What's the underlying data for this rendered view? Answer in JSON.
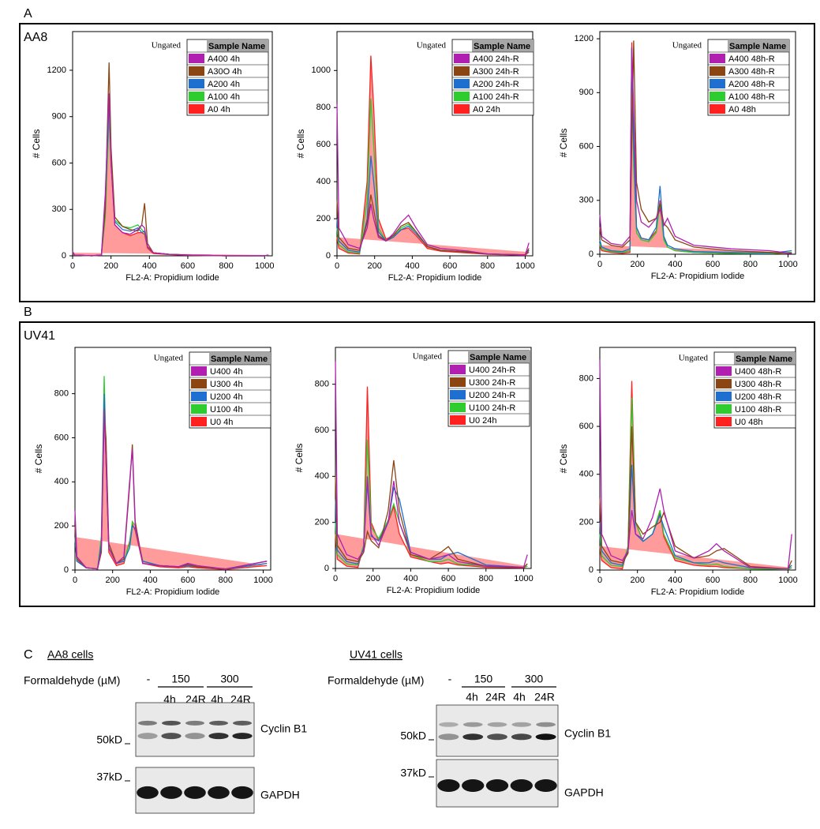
{
  "figure": {
    "panel_labels": [
      "A",
      "B",
      "C"
    ],
    "panel_titles": [
      "AA8",
      "UV41"
    ],
    "blots": [
      {
        "title": "AA8 cells",
        "treatment_label": "Formaldehyde (µM)",
        "control": "-",
        "doses": [
          "150",
          "300"
        ],
        "times": [
          "4h",
          "24R",
          "4h",
          "24R"
        ],
        "markers": [
          "50kD",
          "37kD"
        ],
        "proteins": [
          "Cyclin B1",
          "GAPDH"
        ]
      },
      {
        "title": "UV41 cells",
        "treatment_label": "Formaldehyde (µM)",
        "control": "-",
        "doses": [
          "150",
          "300"
        ],
        "times": [
          "4h",
          "24R",
          "4h",
          "24R"
        ],
        "markers": [
          "50kD",
          "37kD"
        ],
        "proteins": [
          "Cyclin B1",
          "GAPDH"
        ]
      }
    ]
  },
  "chart_data": [
    {
      "type": "line",
      "title": "Ungated",
      "legend_title": "Sample Name",
      "xlabel": "FL2-A: Propidium Iodide",
      "ylabel": "# Cells",
      "x": [
        0,
        10,
        100,
        150,
        170,
        190,
        200,
        220,
        260,
        300,
        340,
        360,
        375,
        390,
        420,
        500,
        600,
        800,
        1000,
        1020
      ],
      "series": [
        {
          "name": "A400 4h",
          "color": "#b01fb0",
          "values": [
            30,
            5,
            0,
            5,
            400,
            1050,
            600,
            200,
            150,
            140,
            170,
            200,
            180,
            60,
            20,
            10,
            5,
            0,
            0,
            5
          ]
        },
        {
          "name": "A30O 4h",
          "color": "#8b4513",
          "values": [
            20,
            5,
            0,
            5,
            300,
            1250,
            700,
            250,
            190,
            170,
            160,
            200,
            340,
            80,
            20,
            10,
            5,
            0,
            0,
            5
          ]
        },
        {
          "name": "A200 4h",
          "color": "#1e6fd0",
          "values": [
            20,
            5,
            0,
            5,
            350,
            1000,
            650,
            220,
            170,
            160,
            180,
            150,
            160,
            60,
            20,
            10,
            5,
            0,
            0,
            5
          ]
        },
        {
          "name": "A100 4h",
          "color": "#2ecc2e",
          "values": [
            20,
            5,
            0,
            5,
            250,
            900,
            600,
            230,
            190,
            180,
            200,
            170,
            150,
            60,
            20,
            10,
            5,
            0,
            0,
            5
          ]
        },
        {
          "name": "A0 4h",
          "color": "#ff2020",
          "values": [
            20,
            5,
            0,
            5,
            300,
            950,
            600,
            200,
            150,
            130,
            150,
            150,
            140,
            50,
            15,
            8,
            3,
            0,
            0,
            5
          ]
        }
      ],
      "xlim": [
        0,
        1040
      ],
      "ylim": [
        0,
        1450
      ],
      "xticks": [
        0,
        200,
        400,
        600,
        800,
        1000
      ],
      "yticks": [
        0,
        300,
        600,
        900,
        1200
      ]
    },
    {
      "type": "line",
      "title": "Ungated",
      "legend_title": "Sample Name",
      "xlabel": "FL2-A: Propidium Iodide",
      "ylabel": "# Cells",
      "x": [
        0,
        10,
        60,
        120,
        160,
        180,
        195,
        220,
        260,
        300,
        340,
        380,
        420,
        480,
        550,
        700,
        800,
        1000,
        1020
      ],
      "series": [
        {
          "name": "A400 24h-R",
          "color": "#b01fb0",
          "values": [
            820,
            150,
            60,
            40,
            150,
            280,
            200,
            100,
            80,
            120,
            180,
            220,
            150,
            60,
            40,
            25,
            10,
            5,
            70
          ]
        },
        {
          "name": "A300 24h-R",
          "color": "#8b4513",
          "values": [
            300,
            100,
            40,
            30,
            180,
            330,
            250,
            110,
            80,
            110,
            160,
            180,
            130,
            50,
            30,
            20,
            10,
            5,
            40
          ]
        },
        {
          "name": "A200 24h-R",
          "color": "#1e6fd0",
          "values": [
            200,
            80,
            30,
            20,
            200,
            540,
            400,
            130,
            80,
            100,
            140,
            160,
            120,
            50,
            30,
            20,
            10,
            5,
            30
          ]
        },
        {
          "name": "A100 24h-R",
          "color": "#2ecc2e",
          "values": [
            150,
            60,
            20,
            15,
            300,
            850,
            600,
            150,
            80,
            100,
            150,
            170,
            130,
            50,
            30,
            20,
            10,
            5,
            30
          ]
        },
        {
          "name": "A0 24h",
          "color": "#ff2020",
          "values": [
            100,
            40,
            15,
            10,
            400,
            1080,
            800,
            200,
            90,
            110,
            140,
            150,
            110,
            40,
            25,
            15,
            8,
            3,
            20
          ]
        }
      ],
      "xlim": [
        0,
        1040
      ],
      "ylim": [
        0,
        1210
      ],
      "xticks": [
        0,
        200,
        400,
        600,
        800,
        1000
      ],
      "yticks": [
        0,
        200,
        400,
        600,
        800,
        1000
      ]
    },
    {
      "type": "line",
      "title": "Ungated",
      "legend_title": "Sample Name",
      "xlabel": "FL2-A: Propidium Iodide",
      "ylabel": "# Cells",
      "x": [
        0,
        10,
        60,
        120,
        160,
        170,
        180,
        195,
        220,
        260,
        300,
        320,
        340,
        360,
        400,
        500,
        700,
        900,
        1020
      ],
      "series": [
        {
          "name": "A400 48h-R",
          "color": "#b01fb0",
          "values": [
            220,
            100,
            60,
            50,
            100,
            1150,
            800,
            300,
            180,
            150,
            200,
            250,
            160,
            200,
            100,
            50,
            30,
            20,
            5
          ]
        },
        {
          "name": "A300 48h-R",
          "color": "#8b4513",
          "values": [
            150,
            80,
            50,
            40,
            80,
            600,
            1190,
            400,
            250,
            180,
            200,
            280,
            170,
            150,
            80,
            40,
            20,
            10,
            5
          ]
        },
        {
          "name": "A200 48h-R",
          "color": "#1e6fd0",
          "values": [
            80,
            40,
            20,
            15,
            30,
            1150,
            600,
            150,
            90,
            80,
            150,
            380,
            100,
            50,
            30,
            15,
            10,
            5,
            20
          ]
        },
        {
          "name": "A100 48h-R",
          "color": "#2ecc2e",
          "values": [
            60,
            30,
            15,
            10,
            20,
            1150,
            500,
            120,
            80,
            70,
            120,
            280,
            80,
            40,
            20,
            10,
            5,
            3,
            10
          ]
        },
        {
          "name": "A0 48h",
          "color": "#ff2020",
          "values": [
            50,
            20,
            10,
            5,
            10,
            1180,
            700,
            150,
            90,
            80,
            130,
            300,
            90,
            40,
            20,
            10,
            5,
            3,
            10
          ]
        }
      ],
      "xlim": [
        0,
        1040
      ],
      "ylim": [
        0,
        1240
      ],
      "xticks": [
        0,
        200,
        400,
        600,
        800,
        1000
      ],
      "yticks": [
        0,
        300,
        600,
        900,
        1200
      ]
    },
    {
      "type": "line",
      "title": "Ungated",
      "legend_title": "Sample Name",
      "xlabel": "FL2-A: Propidium Iodide",
      "ylabel": "# Cells",
      "x": [
        0,
        10,
        60,
        120,
        140,
        155,
        165,
        180,
        220,
        260,
        290,
        305,
        320,
        360,
        450,
        550,
        600,
        650,
        800,
        1020
      ],
      "series": [
        {
          "name": "U400 4h",
          "color": "#b01fb0",
          "values": [
            270,
            60,
            10,
            5,
            100,
            730,
            500,
            100,
            30,
            60,
            400,
            550,
            200,
            30,
            20,
            15,
            30,
            20,
            5,
            40
          ]
        },
        {
          "name": "U300 4h",
          "color": "#8b4513",
          "values": [
            200,
            50,
            10,
            5,
            80,
            700,
            600,
            120,
            30,
            50,
            380,
            570,
            220,
            30,
            20,
            15,
            25,
            15,
            5,
            40
          ]
        },
        {
          "name": "U200 4h",
          "color": "#1e6fd0",
          "values": [
            150,
            40,
            10,
            5,
            120,
            800,
            500,
            100,
            30,
            40,
            100,
            200,
            190,
            40,
            20,
            15,
            20,
            15,
            5,
            30
          ]
        },
        {
          "name": "U100 4h",
          "color": "#2ecc2e",
          "values": [
            150,
            40,
            10,
            5,
            150,
            880,
            550,
            100,
            30,
            40,
            120,
            220,
            200,
            40,
            20,
            15,
            20,
            15,
            5,
            30
          ]
        },
        {
          "name": "U0 4h",
          "color": "#ff2020",
          "values": [
            150,
            40,
            10,
            5,
            100,
            800,
            500,
            80,
            20,
            30,
            130,
            210,
            180,
            30,
            15,
            10,
            15,
            10,
            3,
            20
          ]
        }
      ],
      "xlim": [
        0,
        1040
      ],
      "ylim": [
        0,
        1010
      ],
      "xticks": [
        0,
        200,
        400,
        600,
        800,
        1000
      ],
      "yticks": [
        0,
        200,
        400,
        600,
        800
      ]
    },
    {
      "type": "line",
      "title": "Ungated",
      "legend_title": "Sample Name",
      "xlabel": "FL2-A: Propidium Iodide",
      "ylabel": "# Cells",
      "x": [
        0,
        10,
        60,
        120,
        150,
        170,
        190,
        230,
        280,
        310,
        340,
        400,
        500,
        560,
        600,
        650,
        800,
        1000,
        1020
      ],
      "series": [
        {
          "name": "U400 24h-R",
          "color": "#b01fb0",
          "values": [
            900,
            150,
            60,
            40,
            80,
            400,
            150,
            100,
            200,
            380,
            200,
            70,
            40,
            50,
            60,
            30,
            10,
            5,
            60
          ]
        },
        {
          "name": "U300 24h-R",
          "color": "#8b4513",
          "values": [
            400,
            100,
            40,
            30,
            70,
            160,
            120,
            90,
            250,
            470,
            250,
            60,
            40,
            70,
            95,
            40,
            10,
            5,
            20
          ]
        },
        {
          "name": "U200 24h-R",
          "color": "#1e6fd0",
          "values": [
            300,
            80,
            30,
            20,
            90,
            370,
            140,
            120,
            200,
            350,
            300,
            70,
            40,
            40,
            60,
            70,
            15,
            5,
            20
          ]
        },
        {
          "name": "U100 24h-R",
          "color": "#2ecc2e",
          "values": [
            200,
            60,
            20,
            15,
            100,
            560,
            180,
            130,
            210,
            280,
            200,
            60,
            30,
            30,
            40,
            20,
            10,
            5,
            10
          ]
        },
        {
          "name": "U0 24h",
          "color": "#ff2020",
          "values": [
            150,
            40,
            10,
            5,
            100,
            790,
            200,
            120,
            200,
            270,
            150,
            50,
            30,
            20,
            25,
            15,
            5,
            3,
            10
          ]
        }
      ],
      "xlim": [
        0,
        1040
      ],
      "ylim": [
        0,
        960
      ],
      "xticks": [
        0,
        200,
        400,
        600,
        800,
        1000
      ],
      "yticks": [
        0,
        200,
        400,
        600,
        800
      ]
    },
    {
      "type": "line",
      "title": "Ungated",
      "legend_title": "Sample Name",
      "xlabel": "FL2-A: Propidium Iodide",
      "ylabel": "# Cells",
      "x": [
        0,
        10,
        60,
        120,
        150,
        170,
        190,
        230,
        280,
        320,
        340,
        400,
        500,
        580,
        620,
        660,
        800,
        1000,
        1020
      ],
      "series": [
        {
          "name": "U400 48h-R",
          "color": "#b01fb0",
          "values": [
            880,
            150,
            60,
            40,
            80,
            250,
            150,
            130,
            220,
            340,
            250,
            80,
            50,
            80,
            110,
            80,
            10,
            5,
            150
          ]
        },
        {
          "name": "U300 48h-R",
          "color": "#8b4513",
          "values": [
            300,
            100,
            40,
            30,
            70,
            600,
            200,
            150,
            180,
            200,
            240,
            100,
            50,
            60,
            80,
            90,
            15,
            5,
            40
          ]
        },
        {
          "name": "U200 48h-R",
          "color": "#1e6fd0",
          "values": [
            200,
            80,
            30,
            20,
            80,
            440,
            150,
            120,
            150,
            230,
            180,
            60,
            30,
            30,
            40,
            30,
            10,
            5,
            20
          ]
        },
        {
          "name": "U100 48h-R",
          "color": "#2ecc2e",
          "values": [
            150,
            60,
            20,
            15,
            100,
            720,
            200,
            120,
            150,
            250,
            150,
            50,
            30,
            20,
            25,
            15,
            5,
            3,
            10
          ]
        },
        {
          "name": "U0 48h",
          "color": "#ff2020",
          "values": [
            100,
            40,
            10,
            5,
            100,
            790,
            200,
            120,
            150,
            240,
            140,
            40,
            20,
            15,
            15,
            10,
            5,
            3,
            10
          ]
        }
      ],
      "xlim": [
        0,
        1040
      ],
      "ylim": [
        0,
        930
      ],
      "xticks": [
        0,
        200,
        400,
        600,
        800,
        1000
      ],
      "yticks": [
        0,
        200,
        400,
        600,
        800
      ]
    }
  ]
}
